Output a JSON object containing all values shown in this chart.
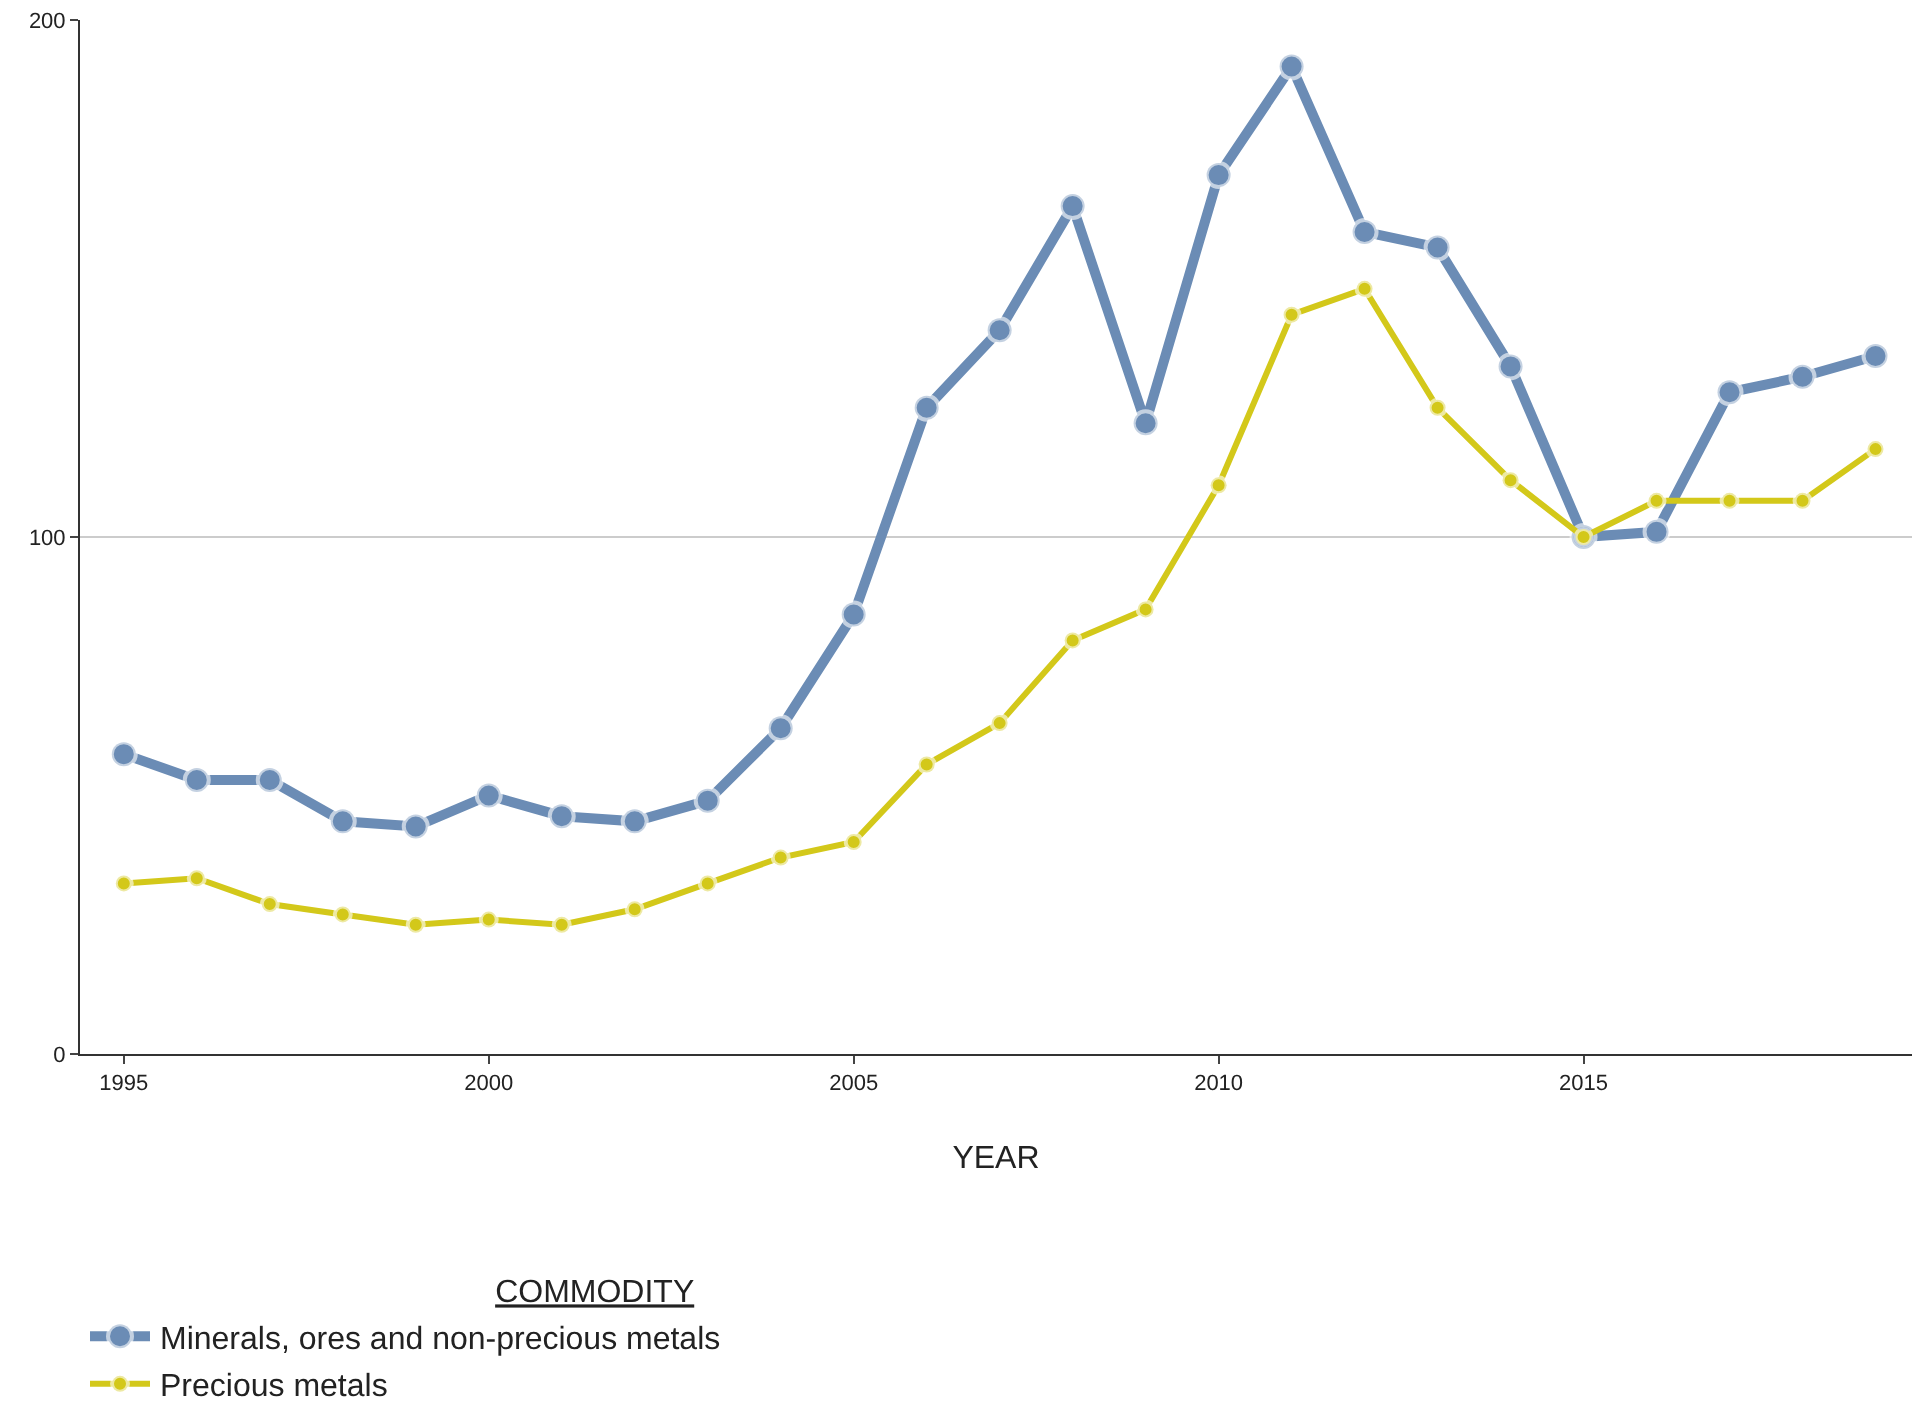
{
  "chart_data": {
    "type": "line",
    "xlabel": "YEAR",
    "legend_title": "COMMODITY",
    "x": [
      1995,
      1996,
      1997,
      1998,
      1999,
      2000,
      2001,
      2002,
      2003,
      2004,
      2005,
      2006,
      2007,
      2008,
      2009,
      2010,
      2011,
      2012,
      2013,
      2014,
      2015,
      2016,
      2017,
      2018,
      2019
    ],
    "series": [
      {
        "name": "Minerals, ores and non-precious metals",
        "color": "#6b8cb5",
        "values": [
          58,
          53,
          53,
          45,
          44,
          50,
          46,
          45,
          49,
          63,
          85,
          125,
          140,
          164,
          122,
          170,
          191,
          159,
          156,
          133,
          100,
          101,
          128,
          131,
          135
        ]
      },
      {
        "name": "Precious metals",
        "color": "#d3c81a",
        "values": [
          33,
          34,
          29,
          27,
          25,
          26,
          25,
          28,
          33,
          38,
          41,
          56,
          64,
          80,
          86,
          110,
          143,
          148,
          125,
          111,
          100,
          107,
          107,
          107,
          117
        ]
      }
    ],
    "xlim": [
      1994.4,
      2019.5
    ],
    "xticks": [
      1995,
      2000,
      2005,
      2010,
      2015
    ],
    "ylim": [
      0,
      200
    ],
    "yticks": [
      0,
      100,
      200
    ],
    "grid": "y",
    "legend": "bottom",
    "marker": "circle",
    "line_style": "solid"
  }
}
